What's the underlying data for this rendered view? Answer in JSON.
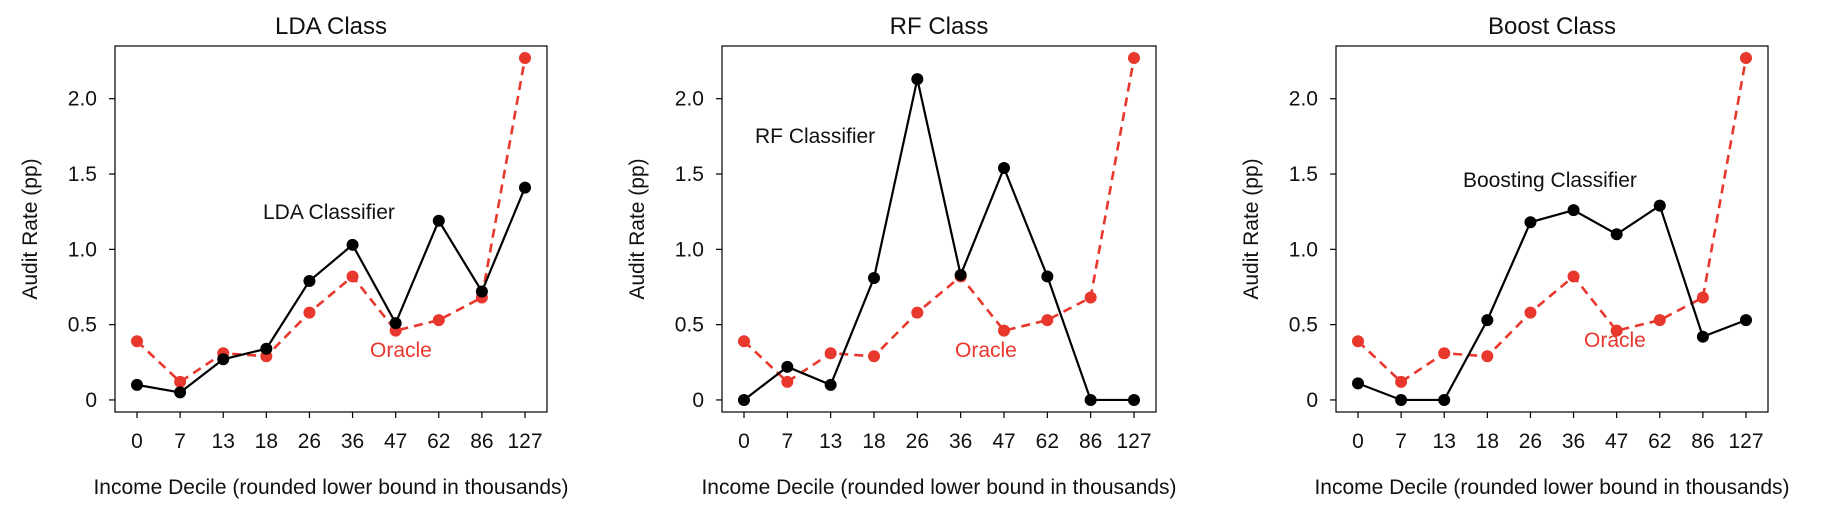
{
  "chart_data": [
    {
      "type": "line",
      "title": "LDA Class",
      "xlabel": "Income Decile (rounded lower bound in thousands)",
      "ylabel": "Audit Rate (pp)",
      "categories": [
        "0",
        "7",
        "13",
        "18",
        "26",
        "36",
        "47",
        "62",
        "86",
        "127"
      ],
      "yticks": [
        "0",
        "0.5",
        "1.0",
        "1.5",
        "2.0"
      ],
      "ylim": [
        -0.08,
        2.35
      ],
      "grid": false,
      "series": [
        {
          "name": "LDA Classifier",
          "color": "#000000",
          "style": "solid",
          "values": [
            0.1,
            0.05,
            0.27,
            0.34,
            0.79,
            1.03,
            0.51,
            1.19,
            0.72,
            1.41
          ]
        },
        {
          "name": "Oracle",
          "color": "#e8372c",
          "style": "dashed",
          "values": [
            0.39,
            0.12,
            0.31,
            0.29,
            0.58,
            0.82,
            0.46,
            0.53,
            0.68,
            2.27
          ]
        }
      ]
    },
    {
      "type": "line",
      "title": "RF Class",
      "xlabel": "Income Decile (rounded lower bound in thousands)",
      "ylabel": "Audit Rate (pp)",
      "categories": [
        "0",
        "7",
        "13",
        "18",
        "26",
        "36",
        "47",
        "62",
        "86",
        "127"
      ],
      "yticks": [
        "0",
        "0.5",
        "1.0",
        "1.5",
        "2.0"
      ],
      "ylim": [
        -0.08,
        2.35
      ],
      "grid": false,
      "series": [
        {
          "name": "RF Classifier",
          "color": "#000000",
          "style": "solid",
          "values": [
            0.0,
            0.22,
            0.1,
            0.81,
            2.13,
            0.83,
            1.54,
            0.82,
            0.0,
            0.0
          ]
        },
        {
          "name": "Oracle",
          "color": "#e8372c",
          "style": "dashed",
          "values": [
            0.39,
            0.12,
            0.31,
            0.29,
            0.58,
            0.82,
            0.46,
            0.53,
            0.68,
            2.27
          ]
        }
      ]
    },
    {
      "type": "line",
      "title": "Boost Class",
      "xlabel": "Income Decile (rounded lower bound in thousands)",
      "ylabel": "Audit Rate (pp)",
      "categories": [
        "0",
        "7",
        "13",
        "18",
        "26",
        "36",
        "47",
        "62",
        "86",
        "127"
      ],
      "yticks": [
        "0",
        "0.5",
        "1.0",
        "1.5",
        "2.0"
      ],
      "ylim": [
        -0.08,
        2.35
      ],
      "grid": false,
      "series": [
        {
          "name": "Boosting Classifier",
          "color": "#000000",
          "style": "solid",
          "values": [
            0.11,
            0.0,
            0.0,
            0.53,
            1.18,
            1.26,
            1.1,
            1.29,
            0.42,
            0.53
          ]
        },
        {
          "name": "Oracle",
          "color": "#e8372c",
          "style": "dashed",
          "values": [
            0.39,
            0.12,
            0.31,
            0.29,
            0.58,
            0.82,
            0.46,
            0.53,
            0.68,
            2.27
          ]
        }
      ]
    }
  ]
}
